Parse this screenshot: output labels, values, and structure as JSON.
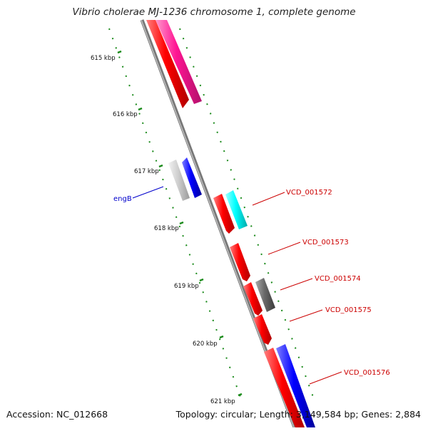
{
  "title": "Vibrio cholerae MJ-1236 chromosome 1, complete genome",
  "footer": {
    "accession": "Accession: NC_012668",
    "summary": "Topology: circular; Length: 3,149,584 bp; Genes: 2,884"
  },
  "scale_labels": [
    "615 kbp",
    "616 kbp",
    "617 kbp",
    "618 kbp",
    "619 kbp",
    "620 kbp",
    "621 kbp"
  ],
  "gene_labels": [
    {
      "text": "engB",
      "color": "#0000cc"
    },
    {
      "text": "VCD_001572",
      "color": "#cc0000"
    },
    {
      "text": "VCD_001573",
      "color": "#cc0000"
    },
    {
      "text": "VCD_001574",
      "color": "#cc0000"
    },
    {
      "text": "VCD_001575",
      "color": "#cc0000"
    },
    {
      "text": "VCD_001576",
      "color": "#cc0000"
    }
  ],
  "colors": {
    "backbone": "#8c8c8c",
    "tick": "#1a8a1a",
    "red": "#ee0000",
    "pink": "#ee2288",
    "blue": "#0000dd",
    "cyan": "#00e5e5",
    "gray": "#666666",
    "lightgray": "#bbbbbb"
  }
}
